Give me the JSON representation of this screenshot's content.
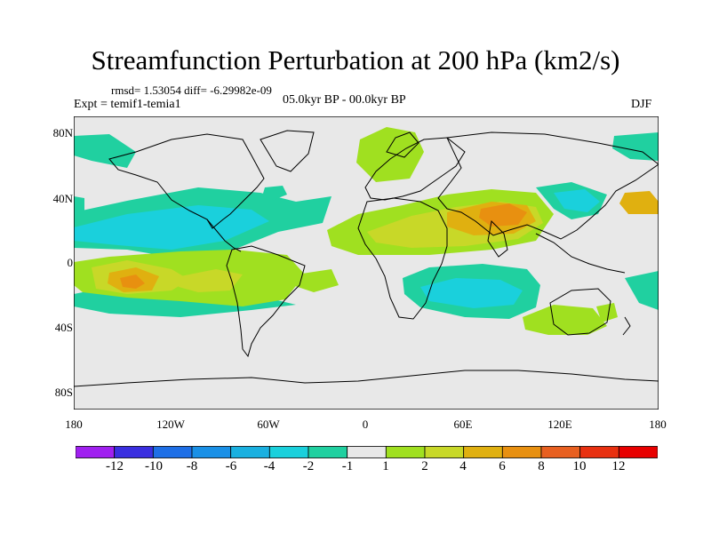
{
  "title": "Streamfunction Perturbation at 200 hPa (km2/s)",
  "stats_line": "rmsd= 1.53054 diff= -6.29982e-09",
  "experiment": "Expt = temif1-temia1",
  "period": "05.0kyr BP - 00.0kyr BP",
  "season": "DJF",
  "lat_labels": [
    "80N",
    "40N",
    "0",
    "40S",
    "80S"
  ],
  "lon_labels": [
    "180",
    "120W",
    "60W",
    "0",
    "60E",
    "120E",
    "180"
  ],
  "colorbar": {
    "labels": [
      "-12",
      "-10",
      "-8",
      "-6",
      "-4",
      "-2",
      "-1",
      "1",
      "2",
      "4",
      "6",
      "8",
      "10",
      "12"
    ],
    "colors": [
      "#a020f0",
      "#3a2fe0",
      "#1e6fe6",
      "#1a90e6",
      "#1ab0e0",
      "#1ad0dc",
      "#20d0a0",
      "#e8e8e8",
      "#a0e020",
      "#c8d828",
      "#e0b010",
      "#e89010",
      "#e86020",
      "#e83010",
      "#e80000"
    ]
  },
  "contour_colors": {
    "neg_1_2": "#20d0a0",
    "neg_2_4": "#1ad0dc",
    "pos_1_2": "#a0e020",
    "pos_2_4": "#c8d828",
    "pos_4_6": "#e0b010",
    "pos_6_8": "#e89010",
    "background": "#e8e8e8"
  }
}
